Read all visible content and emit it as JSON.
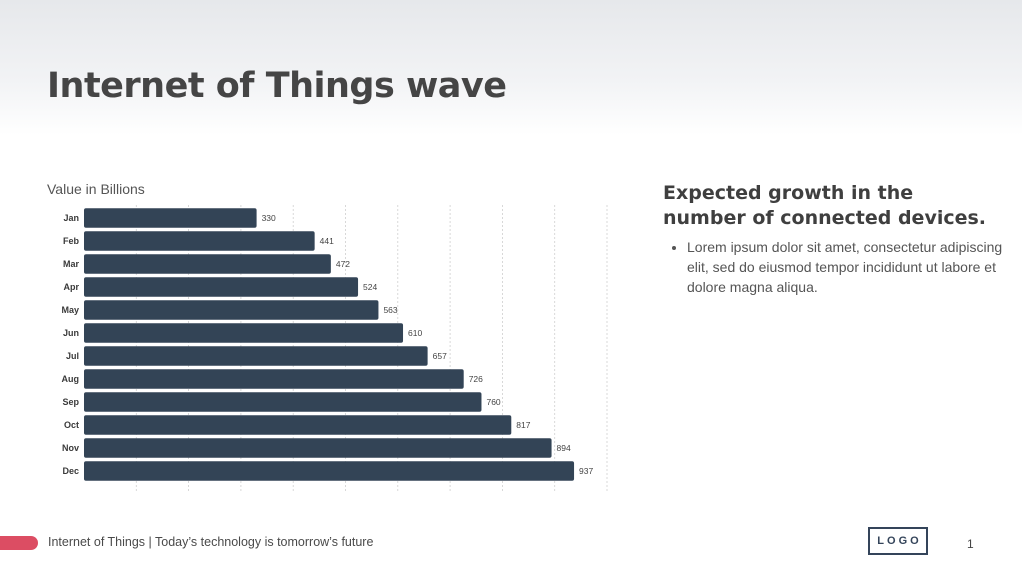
{
  "slide": {
    "title": "Internet of Things wave",
    "chart_caption": "Value in Billions",
    "side_heading": "Expected growth in the number of connected devices.",
    "bullets": [
      "Lorem ipsum dolor sit amet, consectetur adipiscing elit, sed do eiusmod tempor incididunt ut labore et dolore magna aliqua."
    ],
    "footer_text": "Internet of Things | Today’s technology is tomorrow’s future",
    "logo_text": "LOGO",
    "page_number": "1"
  },
  "colors": {
    "bar": "#334456",
    "accent": "#dc4d63",
    "grid": "#cfcfcf"
  },
  "chart_data": {
    "type": "bar",
    "orientation": "horizontal",
    "categories": [
      "Jan",
      "Feb",
      "Mar",
      "Apr",
      "May",
      "Jun",
      "Jul",
      "Aug",
      "Sep",
      "Oct",
      "Nov",
      "Dec"
    ],
    "values": [
      330,
      441,
      472,
      524,
      563,
      610,
      657,
      726,
      760,
      817,
      894,
      937
    ],
    "xlim": [
      0,
      1000
    ],
    "xticks": [
      0,
      100,
      200,
      300,
      400,
      500,
      600,
      700,
      800,
      900,
      1000
    ],
    "grid": true,
    "data_labels": true
  }
}
